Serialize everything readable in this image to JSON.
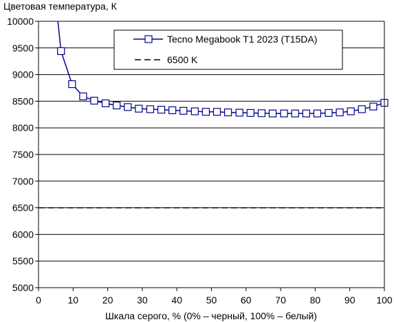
{
  "chart_data": {
    "type": "line",
    "title": "",
    "ylabel": "Цветовая температура, К",
    "xlabel": "Шкала серого, % (0% – черный, 100% – белый)",
    "xlim": [
      0,
      100
    ],
    "ylim": [
      5000,
      10000
    ],
    "x_ticks": [
      0,
      10,
      20,
      30,
      40,
      50,
      60,
      70,
      80,
      90,
      100
    ],
    "y_ticks": [
      5000,
      5500,
      6000,
      6500,
      7000,
      7500,
      8000,
      8500,
      9000,
      9500,
      10000
    ],
    "grid": "horizontal",
    "legend_position": "top-right",
    "series": [
      {
        "name": "Tecno Megabook T1 2023 (T15DA)",
        "color": "#00008b",
        "marker": "square",
        "x": [
          6.5,
          9.7,
          12.9,
          16.1,
          19.4,
          22.6,
          25.8,
          29,
          32.3,
          35.5,
          38.7,
          41.9,
          45.2,
          48.4,
          51.6,
          54.8,
          58.1,
          61.3,
          64.5,
          67.7,
          71,
          74.2,
          77.4,
          80.6,
          83.9,
          87.1,
          90.3,
          93.5,
          96.8,
          100
        ],
        "y": [
          9440,
          8820,
          8590,
          8510,
          8460,
          8420,
          8390,
          8360,
          8350,
          8340,
          8330,
          8320,
          8310,
          8300,
          8300,
          8290,
          8285,
          8280,
          8275,
          8270,
          8270,
          8270,
          8270,
          8270,
          8280,
          8290,
          8310,
          8350,
          8400,
          8470
        ]
      },
      {
        "name": "6500 K",
        "color": "#000000",
        "style": "dashed",
        "x": [
          0,
          100
        ],
        "y": [
          6500,
          6500
        ]
      }
    ],
    "curve_extension": {
      "x": [
        5.6,
        6.5
      ],
      "y": [
        10000,
        9440
      ]
    }
  }
}
